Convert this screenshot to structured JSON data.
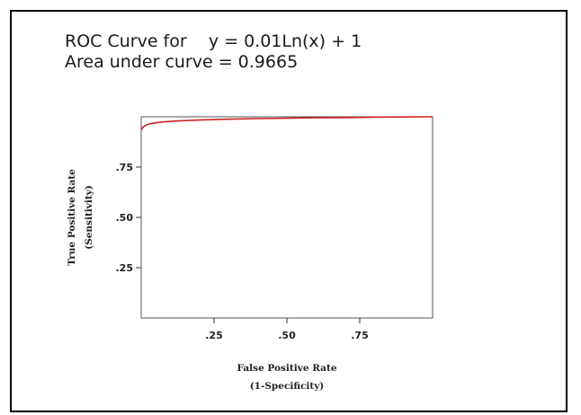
{
  "chart_data": {
    "type": "line",
    "title": "ROC Curve for    y = 0.01Ln(x) + 1",
    "subtitle": "Area under curve = 0.9665",
    "xlabel": "False Positive Rate",
    "xlabel_sub": "(1-Specificity)",
    "ylabel": "True Positive Rate",
    "ylabel_sub": "(Sensitivity)",
    "xlim": [
      0,
      1
    ],
    "ylim": [
      0,
      1
    ],
    "x_ticks": [
      0.25,
      0.5,
      0.75
    ],
    "x_tick_labels": [
      ".25",
      ".50",
      ".75"
    ],
    "y_ticks": [
      0.25,
      0.5,
      0.75
    ],
    "y_tick_labels": [
      ".25",
      ".50",
      ".75"
    ],
    "grid": false,
    "series": [
      {
        "color": "#cc2222",
        "x": [
          0.0,
          0.005,
          0.01,
          0.02,
          0.03,
          0.05,
          0.08,
          0.12,
          0.2,
          0.3,
          0.4,
          0.5,
          0.6,
          0.7,
          0.8,
          0.9,
          1.0
        ],
        "y": [
          0.935,
          0.945,
          0.953,
          0.961,
          0.965,
          0.97,
          0.975,
          0.979,
          0.984,
          0.988,
          0.991,
          0.993,
          0.995,
          0.996,
          0.998,
          0.999,
          1.0
        ]
      }
    ]
  }
}
